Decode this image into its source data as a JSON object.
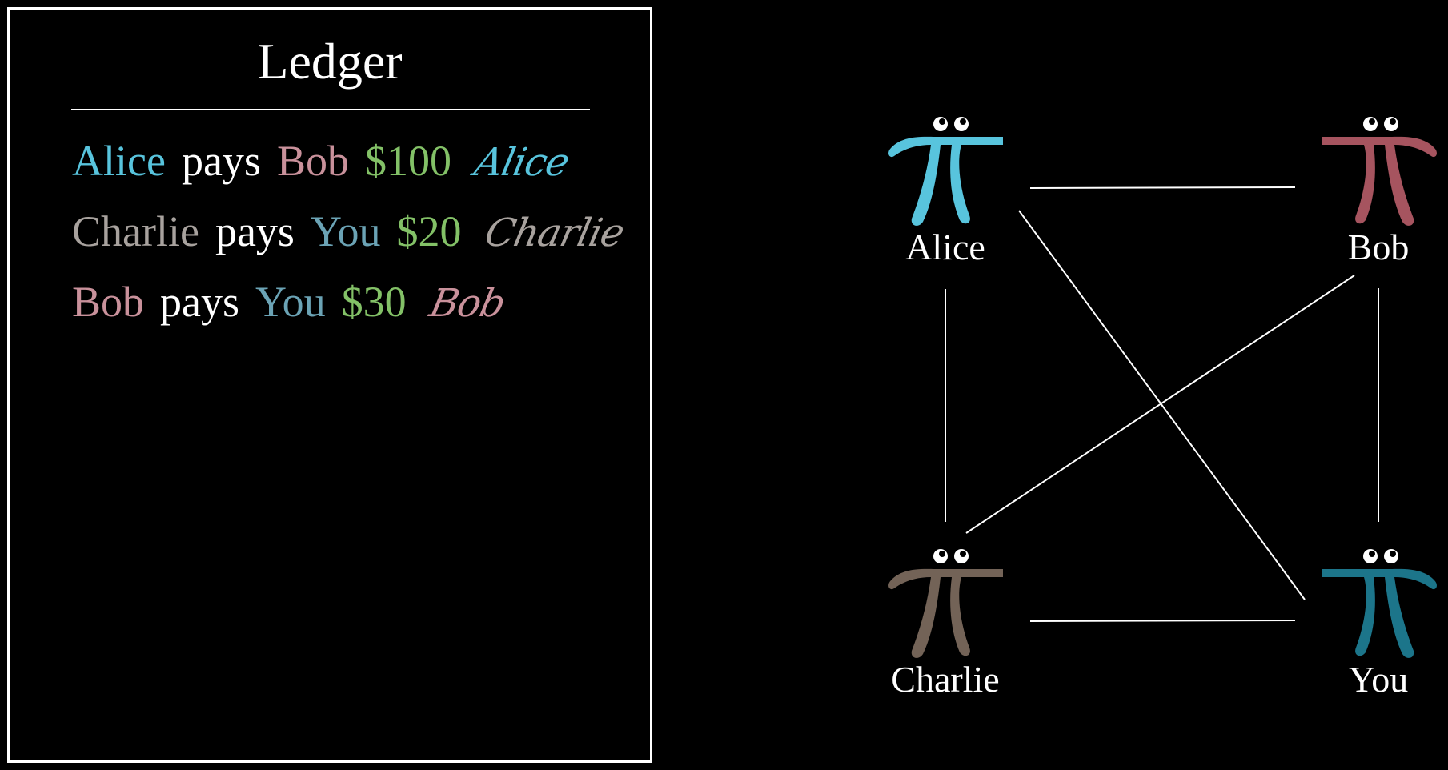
{
  "ledger": {
    "title": "Ledger",
    "entries": [
      {
        "payer": "Alice",
        "verb": "pays",
        "payee": "Bob",
        "amount": "$100",
        "signature": "Alice",
        "payer_color": "#58C4DD",
        "payee_color": "#C9919B",
        "amount_color": "#83C167",
        "signature_color": "#58C4DD"
      },
      {
        "payer": "Charlie",
        "verb": "pays",
        "payee": "You",
        "amount": "$20",
        "signature": "Charlie",
        "payer_color": "#A8A29E",
        "payee_color": "#6BA3B5",
        "amount_color": "#83C167",
        "signature_color": "#A8A29E"
      },
      {
        "payer": "Bob",
        "verb": "pays",
        "payee": "You",
        "amount": "$30",
        "signature": "Bob",
        "payer_color": "#C9919B",
        "payee_color": "#6BA3B5",
        "amount_color": "#83C167",
        "signature_color": "#C9919B"
      }
    ]
  },
  "network": {
    "nodes": {
      "alice": {
        "label": "Alice",
        "color": "#58C4DD",
        "icon": "pi-creature-icon"
      },
      "bob": {
        "label": "Bob",
        "color": "#A6545F",
        "icon": "pi-creature-icon"
      },
      "charlie": {
        "label": "Charlie",
        "color": "#736357",
        "icon": "pi-creature-icon"
      },
      "you": {
        "label": "You",
        "color": "#1C758A",
        "icon": "pi-creature-icon"
      }
    },
    "edges": [
      [
        "alice",
        "bob"
      ],
      [
        "alice",
        "charlie"
      ],
      [
        "alice",
        "you"
      ],
      [
        "bob",
        "charlie"
      ],
      [
        "bob",
        "you"
      ],
      [
        "charlie",
        "you"
      ]
    ]
  }
}
